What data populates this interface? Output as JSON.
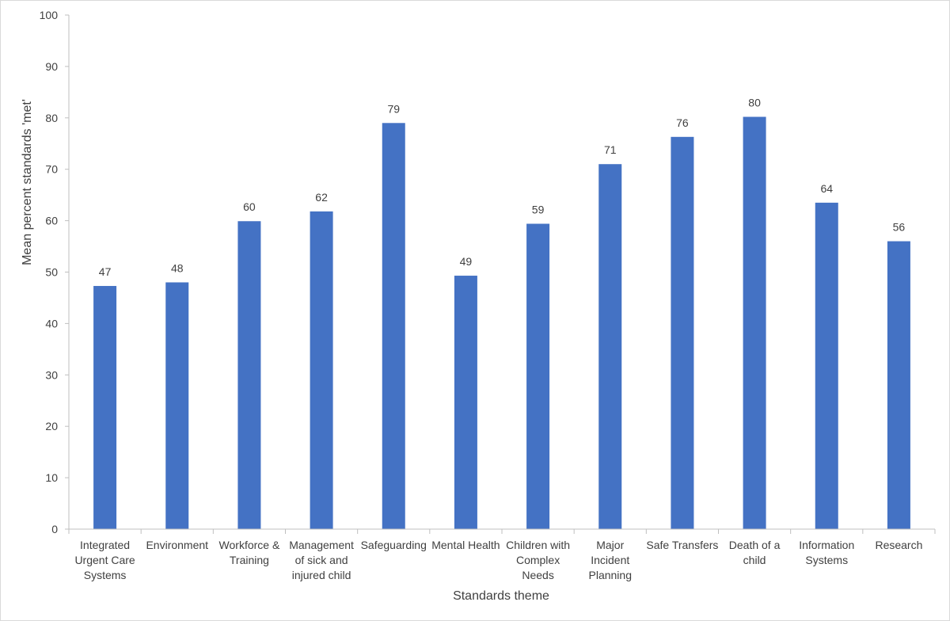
{
  "chart_data": {
    "type": "bar",
    "title": "",
    "xlabel": "Standards theme",
    "ylabel": "Mean percent standards 'met'",
    "ylim": [
      0,
      100
    ],
    "yticks": [
      0,
      10,
      20,
      30,
      40,
      50,
      60,
      70,
      80,
      90,
      100
    ],
    "grid": false,
    "legend": "none",
    "bar_color": "#4472C4",
    "categories": [
      [
        "Integrated",
        "Urgent Care",
        "Systems"
      ],
      [
        "Environment"
      ],
      [
        "Workforce &",
        "Training"
      ],
      [
        "Management",
        "of sick and",
        "injured child"
      ],
      [
        "Safeguarding"
      ],
      [
        "Mental Health"
      ],
      [
        "Children with",
        "Complex",
        "Needs"
      ],
      [
        "Major",
        "Incident",
        "Planning"
      ],
      [
        "Safe Transfers"
      ],
      [
        "Death of a",
        "child"
      ],
      [
        "Information",
        "Systems"
      ],
      [
        "Research"
      ]
    ],
    "values": [
      47.3,
      48.0,
      59.9,
      61.8,
      79.0,
      49.3,
      59.4,
      71.0,
      76.3,
      80.2,
      63.5,
      56.0
    ],
    "data_labels": [
      "47",
      "48",
      "60",
      "62",
      "79",
      "49",
      "59",
      "71",
      "76",
      "80",
      "64",
      "56"
    ]
  }
}
